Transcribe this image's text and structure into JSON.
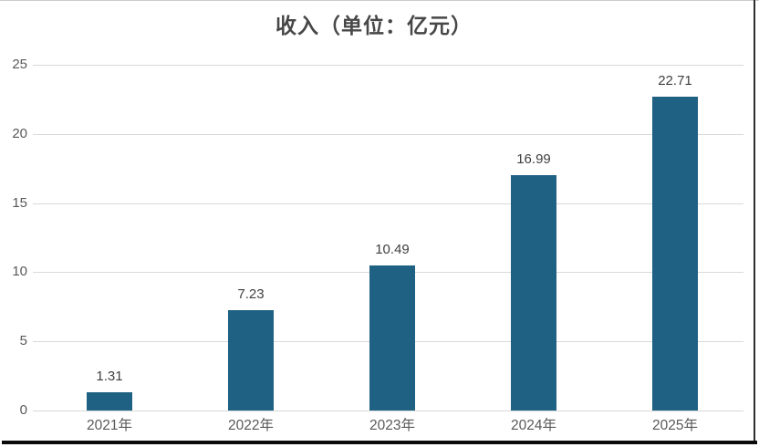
{
  "chart_data": {
    "type": "bar",
    "title": "收入（单位：亿元）",
    "categories": [
      "2021年",
      "2022年",
      "2023年",
      "2024年",
      "2025年"
    ],
    "values": [
      1.31,
      7.23,
      10.49,
      16.99,
      22.71
    ],
    "data_labels": [
      "1.31",
      "7.23",
      "10.49",
      "16.99",
      "22.71"
    ],
    "xlabel": "",
    "ylabel": "",
    "ylim": [
      0,
      25
    ],
    "yticks": [
      0,
      5,
      10,
      15,
      20,
      25
    ],
    "grid": true,
    "legend": false,
    "colors": {
      "bar_fill": "#1e6182",
      "gridline": "#d9d9d9",
      "axis_label": "#595959",
      "data_label": "#3f3f3f",
      "title": "#474747",
      "frame_bottom": "#0a0a0a",
      "frame_right": "#2e2e2e",
      "frame_top": "#cccccc",
      "background": "#ffffff"
    }
  }
}
